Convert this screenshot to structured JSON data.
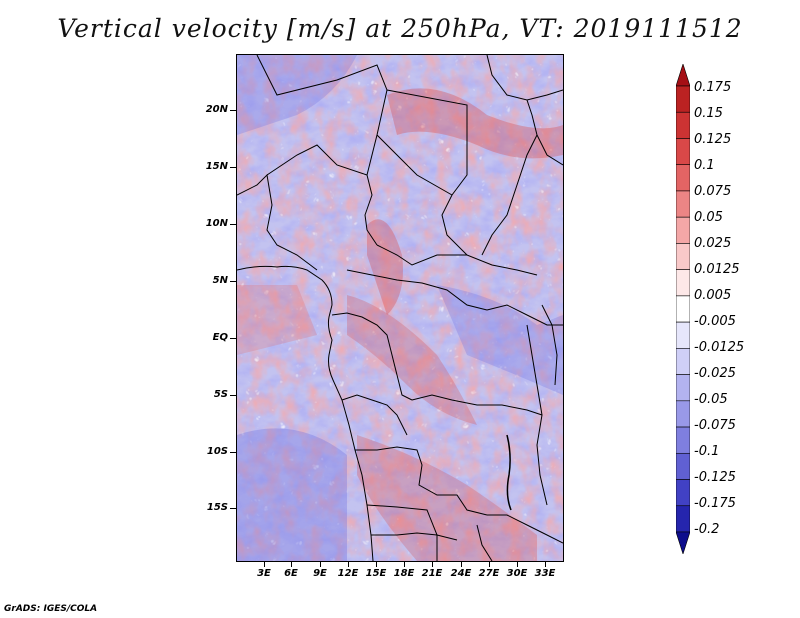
{
  "title": "Vertical velocity [m/s] at 250hPa, VT: 2019111512",
  "credit": "GrADS: IGES/COLA",
  "latitude_labels": [
    "20N",
    "15N",
    "10N",
    "5N",
    "EQ",
    "5S",
    "10S",
    "15S"
  ],
  "longitude_labels": [
    "3E",
    "6E",
    "9E",
    "12E",
    "15E",
    "18E",
    "21E",
    "24E",
    "27E",
    "30E",
    "33E"
  ],
  "colorbar": {
    "labels": [
      "0.175",
      "0.15",
      "0.125",
      "0.1",
      "0.075",
      "0.05",
      "0.025",
      "0.0125",
      "0.005",
      "-0.005",
      "-0.0125",
      "-0.025",
      "-0.05",
      "-0.075",
      "-0.1",
      "-0.125",
      "-0.175",
      "-0.2"
    ],
    "colors": [
      "#a50f15",
      "#bb2222",
      "#cc3333",
      "#d94848",
      "#e36464",
      "#ec8585",
      "#f4a7a7",
      "#f9c9c9",
      "#fde8e8",
      "#ffffff",
      "#e6e6fb",
      "#cfcff7",
      "#b3b3f0",
      "#9999e8",
      "#7f7fdf",
      "#6060d3",
      "#4141c4",
      "#2525ad",
      "#0d0d8c"
    ]
  },
  "map_colors": {
    "positive": "#d94848",
    "negative": "#6f6fe0",
    "background": "#c9c9f2",
    "borders": "#000000"
  }
}
